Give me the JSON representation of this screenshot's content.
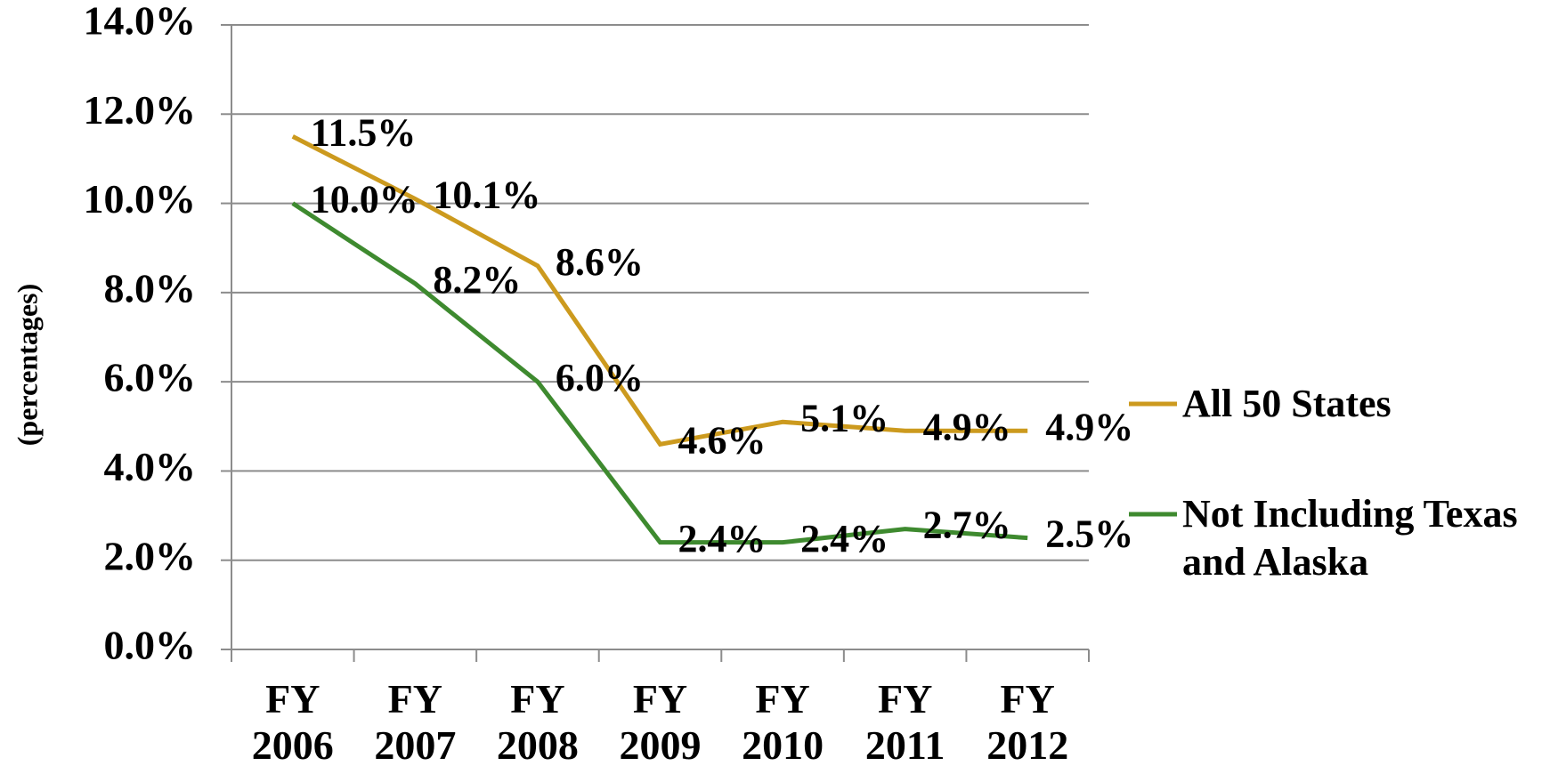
{
  "chart_data": {
    "type": "line",
    "y_label": "(percentages)",
    "categories": [
      "FY 2006",
      "FY 2007",
      "FY 2008",
      "FY 2009",
      "FY 2010",
      "FY 2011",
      "FY 2012"
    ],
    "series": [
      {
        "name": "All 50 States",
        "color": "#cc9a1e",
        "values": [
          11.5,
          10.1,
          8.6,
          4.6,
          5.1,
          4.9,
          4.9
        ],
        "value_labels": [
          "11.5%",
          "10.1%",
          "8.6%",
          "4.6%",
          "5.1%",
          "4.9%",
          "4.9%"
        ]
      },
      {
        "name": "Not Including Texas and Alaska",
        "color": "#3e8a2f",
        "values": [
          10.0,
          8.2,
          6.0,
          2.4,
          2.4,
          2.7,
          2.5
        ],
        "value_labels": [
          "10.0%",
          "8.2%",
          "6.0%",
          "2.4%",
          "2.4%",
          "2.7%",
          "2.5%"
        ]
      }
    ],
    "ylim": [
      0,
      14
    ],
    "yticks": [
      {
        "value": 0,
        "label": "0.0%"
      },
      {
        "value": 2,
        "label": "2.0%"
      },
      {
        "value": 4,
        "label": "4.0%"
      },
      {
        "value": 6,
        "label": "6.0%"
      },
      {
        "value": 8,
        "label": "8.0%"
      },
      {
        "value": 10,
        "label": "10.0%"
      },
      {
        "value": 12,
        "label": "12.0%"
      },
      {
        "value": 14,
        "label": "14.0%"
      }
    ],
    "grid": true,
    "legend": "right"
  }
}
